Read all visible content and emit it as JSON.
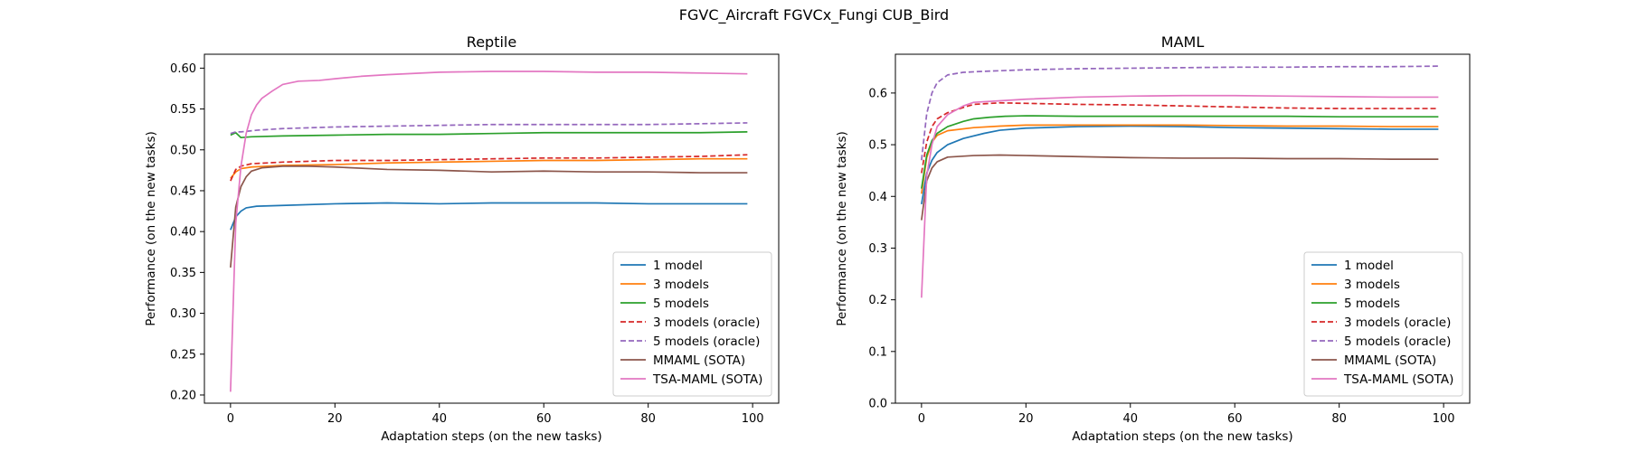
{
  "figure": {
    "suptitle": "FGVC_Aircraft FGVCx_Fungi CUB_Bird"
  },
  "series_styles": {
    "1 model": {
      "color": "#1f77b4",
      "dashed": false
    },
    "3 models": {
      "color": "#ff7f0e",
      "dashed": false
    },
    "5 models": {
      "color": "#2ca02c",
      "dashed": false
    },
    "3 models (oracle)": {
      "color": "#d62728",
      "dashed": true
    },
    "5 models (oracle)": {
      "color": "#9467bd",
      "dashed": true
    },
    "MMAML (SOTA)": {
      "color": "#8c564b",
      "dashed": false
    },
    "TSA-MAML (SOTA)": {
      "color": "#e377c2",
      "dashed": false
    }
  },
  "chart_data": [
    {
      "type": "line",
      "title": "Reptile",
      "xlabel": "Adaptation steps (on the new tasks)",
      "ylabel": "Performance (on the new tasks)",
      "xlim": [
        -5,
        105
      ],
      "ylim": [
        0.19,
        0.617
      ],
      "xticks": [
        0,
        20,
        40,
        60,
        80,
        100
      ],
      "yticks": [
        0.2,
        0.25,
        0.3,
        0.35,
        0.4,
        0.45,
        0.5,
        0.55,
        0.6
      ],
      "ytick_labels": [
        "0.20",
        "0.25",
        "0.30",
        "0.35",
        "0.40",
        "0.45",
        "0.50",
        "0.55",
        "0.60"
      ],
      "legend_position": "lower-right",
      "grid": false,
      "series": [
        {
          "name": "1 model",
          "points": [
            [
              0,
              0.402
            ],
            [
              1,
              0.418
            ],
            [
              2,
              0.425
            ],
            [
              3,
              0.429
            ],
            [
              5,
              0.431
            ],
            [
              10,
              0.432
            ],
            [
              20,
              0.434
            ],
            [
              30,
              0.435
            ],
            [
              40,
              0.434
            ],
            [
              50,
              0.435
            ],
            [
              60,
              0.435
            ],
            [
              70,
              0.435
            ],
            [
              80,
              0.434
            ],
            [
              90,
              0.434
            ],
            [
              99,
              0.434
            ]
          ]
        },
        {
          "name": "3 models",
          "points": [
            [
              0,
              0.465
            ],
            [
              1,
              0.473
            ],
            [
              2,
              0.477
            ],
            [
              4,
              0.479
            ],
            [
              10,
              0.481
            ],
            [
              20,
              0.482
            ],
            [
              30,
              0.484
            ],
            [
              40,
              0.485
            ],
            [
              50,
              0.486
            ],
            [
              60,
              0.487
            ],
            [
              70,
              0.487
            ],
            [
              80,
              0.488
            ],
            [
              90,
              0.489
            ],
            [
              99,
              0.489
            ]
          ]
        },
        {
          "name": "5 models",
          "points": [
            [
              0,
              0.518
            ],
            [
              1,
              0.521
            ],
            [
              2,
              0.515
            ],
            [
              4,
              0.516
            ],
            [
              10,
              0.517
            ],
            [
              20,
              0.518
            ],
            [
              30,
              0.519
            ],
            [
              40,
              0.519
            ],
            [
              50,
              0.52
            ],
            [
              60,
              0.521
            ],
            [
              70,
              0.521
            ],
            [
              80,
              0.521
            ],
            [
              90,
              0.521
            ],
            [
              99,
              0.522
            ]
          ]
        },
        {
          "name": "3 models (oracle)",
          "points": [
            [
              0,
              0.462
            ],
            [
              1,
              0.476
            ],
            [
              2,
              0.48
            ],
            [
              4,
              0.483
            ],
            [
              10,
              0.485
            ],
            [
              20,
              0.487
            ],
            [
              30,
              0.487
            ],
            [
              40,
              0.488
            ],
            [
              50,
              0.489
            ],
            [
              60,
              0.49
            ],
            [
              70,
              0.49
            ],
            [
              80,
              0.491
            ],
            [
              90,
              0.492
            ],
            [
              99,
              0.494
            ]
          ]
        },
        {
          "name": "5 models (oracle)",
          "points": [
            [
              0,
              0.52
            ],
            [
              1,
              0.522
            ],
            [
              2,
              0.522
            ],
            [
              5,
              0.524
            ],
            [
              10,
              0.526
            ],
            [
              20,
              0.528
            ],
            [
              30,
              0.529
            ],
            [
              40,
              0.53
            ],
            [
              50,
              0.531
            ],
            [
              60,
              0.531
            ],
            [
              70,
              0.531
            ],
            [
              80,
              0.531
            ],
            [
              90,
              0.532
            ],
            [
              99,
              0.533
            ]
          ]
        },
        {
          "name": "MMAML (SOTA)",
          "points": [
            [
              0,
              0.356
            ],
            [
              1,
              0.43
            ],
            [
              2,
              0.455
            ],
            [
              3,
              0.467
            ],
            [
              4,
              0.474
            ],
            [
              6,
              0.478
            ],
            [
              8,
              0.479
            ],
            [
              10,
              0.48
            ],
            [
              15,
              0.48
            ],
            [
              20,
              0.479
            ],
            [
              30,
              0.476
            ],
            [
              40,
              0.475
            ],
            [
              50,
              0.473
            ],
            [
              60,
              0.474
            ],
            [
              70,
              0.473
            ],
            [
              80,
              0.473
            ],
            [
              90,
              0.472
            ],
            [
              99,
              0.472
            ]
          ]
        },
        {
          "name": "TSA-MAML (SOTA)",
          "points": [
            [
              0,
              0.204
            ],
            [
              1,
              0.41
            ],
            [
              2,
              0.48
            ],
            [
              3,
              0.52
            ],
            [
              4,
              0.543
            ],
            [
              5,
              0.555
            ],
            [
              6,
              0.563
            ],
            [
              8,
              0.572
            ],
            [
              10,
              0.58
            ],
            [
              13,
              0.584
            ],
            [
              17,
              0.585
            ],
            [
              20,
              0.587
            ],
            [
              25,
              0.59
            ],
            [
              30,
              0.592
            ],
            [
              40,
              0.595
            ],
            [
              50,
              0.596
            ],
            [
              60,
              0.596
            ],
            [
              70,
              0.595
            ],
            [
              80,
              0.595
            ],
            [
              90,
              0.594
            ],
            [
              99,
              0.593
            ]
          ]
        }
      ]
    },
    {
      "type": "line",
      "title": "MAML",
      "xlabel": "Adaptation steps (on the new tasks)",
      "ylabel": "Performance (on the new tasks)",
      "xlim": [
        -5,
        105
      ],
      "ylim": [
        0.0,
        0.675
      ],
      "xticks": [
        0,
        20,
        40,
        60,
        80,
        100
      ],
      "yticks": [
        0.0,
        0.1,
        0.2,
        0.3,
        0.4,
        0.5,
        0.6
      ],
      "ytick_labels": [
        "0.0",
        "0.1",
        "0.2",
        "0.3",
        "0.4",
        "0.5",
        "0.6"
      ],
      "legend_position": "lower-right",
      "grid": false,
      "series": [
        {
          "name": "1 model",
          "points": [
            [
              0,
              0.385
            ],
            [
              1,
              0.445
            ],
            [
              2,
              0.47
            ],
            [
              3,
              0.485
            ],
            [
              5,
              0.5
            ],
            [
              8,
              0.512
            ],
            [
              12,
              0.522
            ],
            [
              15,
              0.528
            ],
            [
              20,
              0.532
            ],
            [
              30,
              0.535
            ],
            [
              40,
              0.536
            ],
            [
              50,
              0.535
            ],
            [
              60,
              0.533
            ],
            [
              70,
              0.532
            ],
            [
              80,
              0.531
            ],
            [
              90,
              0.53
            ],
            [
              99,
              0.53
            ]
          ]
        },
        {
          "name": "3 models",
          "points": [
            [
              0,
              0.405
            ],
            [
              1,
              0.475
            ],
            [
              2,
              0.505
            ],
            [
              3,
              0.518
            ],
            [
              5,
              0.527
            ],
            [
              10,
              0.533
            ],
            [
              15,
              0.536
            ],
            [
              20,
              0.538
            ],
            [
              30,
              0.538
            ],
            [
              40,
              0.538
            ],
            [
              50,
              0.538
            ],
            [
              60,
              0.537
            ],
            [
              70,
              0.536
            ],
            [
              80,
              0.536
            ],
            [
              90,
              0.535
            ],
            [
              99,
              0.535
            ]
          ]
        },
        {
          "name": "5 models",
          "points": [
            [
              0,
              0.415
            ],
            [
              1,
              0.48
            ],
            [
              2,
              0.508
            ],
            [
              3,
              0.522
            ],
            [
              5,
              0.535
            ],
            [
              8,
              0.545
            ],
            [
              10,
              0.55
            ],
            [
              13,
              0.553
            ],
            [
              16,
              0.555
            ],
            [
              20,
              0.556
            ],
            [
              30,
              0.555
            ],
            [
              40,
              0.555
            ],
            [
              50,
              0.555
            ],
            [
              60,
              0.555
            ],
            [
              70,
              0.555
            ],
            [
              80,
              0.554
            ],
            [
              90,
              0.554
            ],
            [
              99,
              0.554
            ]
          ]
        },
        {
          "name": "3 models (oracle)",
          "points": [
            [
              0,
              0.445
            ],
            [
              1,
              0.505
            ],
            [
              2,
              0.535
            ],
            [
              3,
              0.55
            ],
            [
              5,
              0.562
            ],
            [
              8,
              0.572
            ],
            [
              10,
              0.578
            ],
            [
              15,
              0.581
            ],
            [
              20,
              0.58
            ],
            [
              30,
              0.578
            ],
            [
              40,
              0.577
            ],
            [
              50,
              0.575
            ],
            [
              60,
              0.573
            ],
            [
              70,
              0.571
            ],
            [
              80,
              0.57
            ],
            [
              90,
              0.57
            ],
            [
              99,
              0.57
            ]
          ]
        },
        {
          "name": "5 models (oracle)",
          "points": [
            [
              0,
              0.47
            ],
            [
              1,
              0.56
            ],
            [
              2,
              0.6
            ],
            [
              3,
              0.62
            ],
            [
              5,
              0.635
            ],
            [
              8,
              0.64
            ],
            [
              12,
              0.642
            ],
            [
              20,
              0.645
            ],
            [
              30,
              0.647
            ],
            [
              40,
              0.648
            ],
            [
              50,
              0.649
            ],
            [
              60,
              0.65
            ],
            [
              70,
              0.65
            ],
            [
              80,
              0.651
            ],
            [
              90,
              0.651
            ],
            [
              99,
              0.652
            ]
          ]
        },
        {
          "name": "MMAML (SOTA)",
          "points": [
            [
              0,
              0.354
            ],
            [
              1,
              0.43
            ],
            [
              2,
              0.455
            ],
            [
              3,
              0.467
            ],
            [
              5,
              0.476
            ],
            [
              10,
              0.479
            ],
            [
              15,
              0.48
            ],
            [
              20,
              0.479
            ],
            [
              30,
              0.477
            ],
            [
              40,
              0.475
            ],
            [
              50,
              0.474
            ],
            [
              60,
              0.474
            ],
            [
              70,
              0.473
            ],
            [
              80,
              0.473
            ],
            [
              90,
              0.472
            ],
            [
              99,
              0.472
            ]
          ]
        },
        {
          "name": "TSA-MAML (SOTA)",
          "points": [
            [
              0,
              0.204
            ],
            [
              1,
              0.44
            ],
            [
              2,
              0.5
            ],
            [
              3,
              0.535
            ],
            [
              5,
              0.558
            ],
            [
              8,
              0.575
            ],
            [
              10,
              0.582
            ],
            [
              15,
              0.585
            ],
            [
              20,
              0.588
            ],
            [
              30,
              0.592
            ],
            [
              40,
              0.594
            ],
            [
              50,
              0.595
            ],
            [
              60,
              0.595
            ],
            [
              70,
              0.594
            ],
            [
              80,
              0.593
            ],
            [
              90,
              0.592
            ],
            [
              99,
              0.592
            ]
          ]
        }
      ]
    }
  ]
}
